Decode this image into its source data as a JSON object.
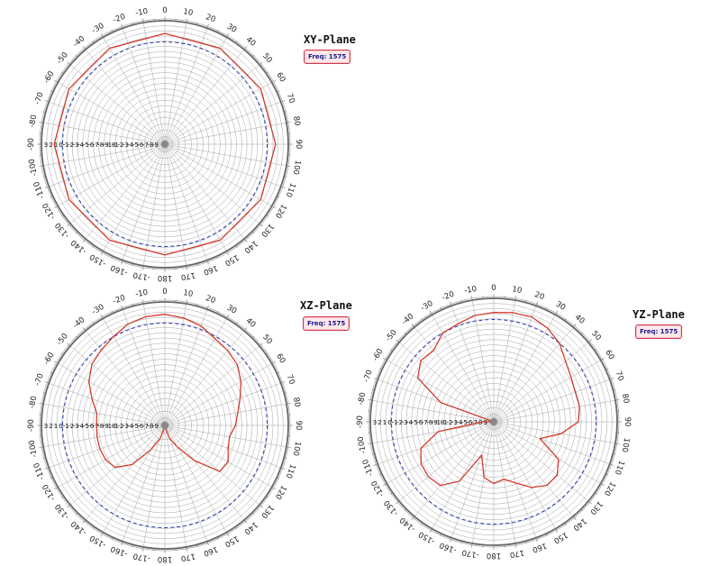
{
  "chart_data": [
    {
      "type": "polar",
      "title": "XY-Plane",
      "legend": "Freq: 1575",
      "angle_labels": [
        "0",
        "10",
        "20",
        "30",
        "40",
        "50",
        "60",
        "70",
        "80",
        "90",
        "100",
        "110",
        "120",
        "130",
        "140",
        "150",
        "160",
        "170",
        "180",
        "-170",
        "-160",
        "-150",
        "-140",
        "-130",
        "-120",
        "-110",
        "-100",
        "-90",
        "-80",
        "-70",
        "-60",
        "-50",
        "-40",
        "-30",
        "-20",
        "-10"
      ],
      "radial_labels": [
        "3",
        "2",
        "1",
        "0",
        "-1",
        "-2",
        "-3",
        "-4",
        "-5",
        "-6",
        "-7",
        "-8",
        "-9",
        "-10",
        "-1",
        "-2",
        "-3",
        "-4",
        "-5",
        "-6",
        "-7",
        "-8",
        "-9"
      ],
      "rlim": [
        -32,
        3
      ],
      "reference_level": -3,
      "angles": [
        0,
        30,
        60,
        90,
        120,
        150,
        180,
        210,
        240,
        270,
        300,
        330
      ],
      "pattern": [
        -0.6,
        -0.6,
        -0.6,
        -0.6,
        -0.6,
        -0.6,
        -0.6,
        -0.6,
        -0.6,
        -0.6,
        -0.6,
        -0.6
      ],
      "grid": true
    },
    {
      "type": "polar",
      "title": "XZ-Plane",
      "legend": "Freq: 1575",
      "angle_labels": [
        "0",
        "10",
        "20",
        "30",
        "40",
        "50",
        "60",
        "70",
        "80",
        "90",
        "100",
        "110",
        "120",
        "130",
        "140",
        "150",
        "160",
        "170",
        "180",
        "-170",
        "-160",
        "-150",
        "-140",
        "-130",
        "-120",
        "-110",
        "-100",
        "-90",
        "-80",
        "-70",
        "-60",
        "-50",
        "-40",
        "-30",
        "-20",
        "-10"
      ],
      "radial_labels": [
        "3",
        "2",
        "1",
        "0",
        "-1",
        "-2",
        "-3",
        "-4",
        "-5",
        "-6",
        "-7",
        "-8",
        "-9",
        "-10",
        "-1",
        "-2",
        "-3",
        "-4",
        "-5",
        "-6",
        "-7",
        "-8",
        "-9"
      ],
      "rlim": [
        -32,
        3
      ],
      "reference_level": -3,
      "angles": [
        0,
        10,
        20,
        30,
        40,
        50,
        60,
        70,
        80,
        90,
        100,
        110,
        120,
        130,
        140,
        150,
        160,
        170,
        180,
        190,
        200,
        210,
        220,
        230,
        240,
        250,
        260,
        270,
        280,
        290,
        300,
        310,
        320,
        330,
        340,
        350
      ],
      "pattern": [
        -0.5,
        -1.1,
        -2,
        -3.6,
        -4.3,
        -5.2,
        -7.1,
        -9.3,
        -11,
        -12,
        -13.4,
        -12.9,
        -11.3,
        -11.7,
        -19,
        -25,
        -28,
        -31.5,
        -32,
        -31.5,
        -28,
        -24,
        -17.5,
        -13.5,
        -12.6,
        -12.4,
        -12.5,
        -12.6,
        -12.4,
        -10,
        -7.1,
        -5,
        -4,
        -2.9,
        -1.4,
        -0.7
      ],
      "grid": true
    },
    {
      "type": "polar",
      "title": "YZ-Plane",
      "legend": "Freq: 1575",
      "angle_labels": [
        "0",
        "10",
        "20",
        "30",
        "40",
        "50",
        "60",
        "70",
        "80",
        "90",
        "100",
        "110",
        "120",
        "130",
        "140",
        "150",
        "160",
        "170",
        "180",
        "-170",
        "-160",
        "-150",
        "-140",
        "-130",
        "-120",
        "-110",
        "-100",
        "-90",
        "-80",
        "-70",
        "-60",
        "-50",
        "-40",
        "-30",
        "-20",
        "-10"
      ],
      "radial_labels": [
        "3",
        "2",
        "1",
        "0",
        "-1",
        "-2",
        "-3",
        "-4",
        "-5",
        "-6",
        "-7",
        "-8",
        "-9",
        "-10",
        "-1",
        "-2",
        "-3",
        "-4",
        "-5",
        "-6",
        "-7",
        "-8",
        "-9"
      ],
      "rlim": [
        -32,
        3
      ],
      "reference_level": -3,
      "angles": [
        0,
        10,
        20,
        30,
        40,
        50,
        60,
        70,
        80,
        90,
        100,
        110,
        120,
        130,
        140,
        150,
        160,
        170,
        180,
        190,
        200,
        210,
        220,
        230,
        240,
        250,
        260,
        270,
        280,
        290,
        300,
        310,
        320,
        330,
        340,
        350
      ],
      "pattern": [
        -1,
        -0.6,
        -0.4,
        -1.4,
        -3,
        -5.4,
        -6.7,
        -7.4,
        -7.3,
        -8,
        -12.6,
        -18.1,
        -10.8,
        -8.5,
        -8.5,
        -10.5,
        -13.5,
        -15.5,
        -14.5,
        -16,
        -22,
        -12.6,
        -8.4,
        -7.8,
        -8.2,
        -10,
        -16,
        -29,
        -32,
        -16,
        -7.1,
        -5,
        -5.5,
        -3,
        -2.4,
        -1.4
      ],
      "grid": true
    }
  ]
}
